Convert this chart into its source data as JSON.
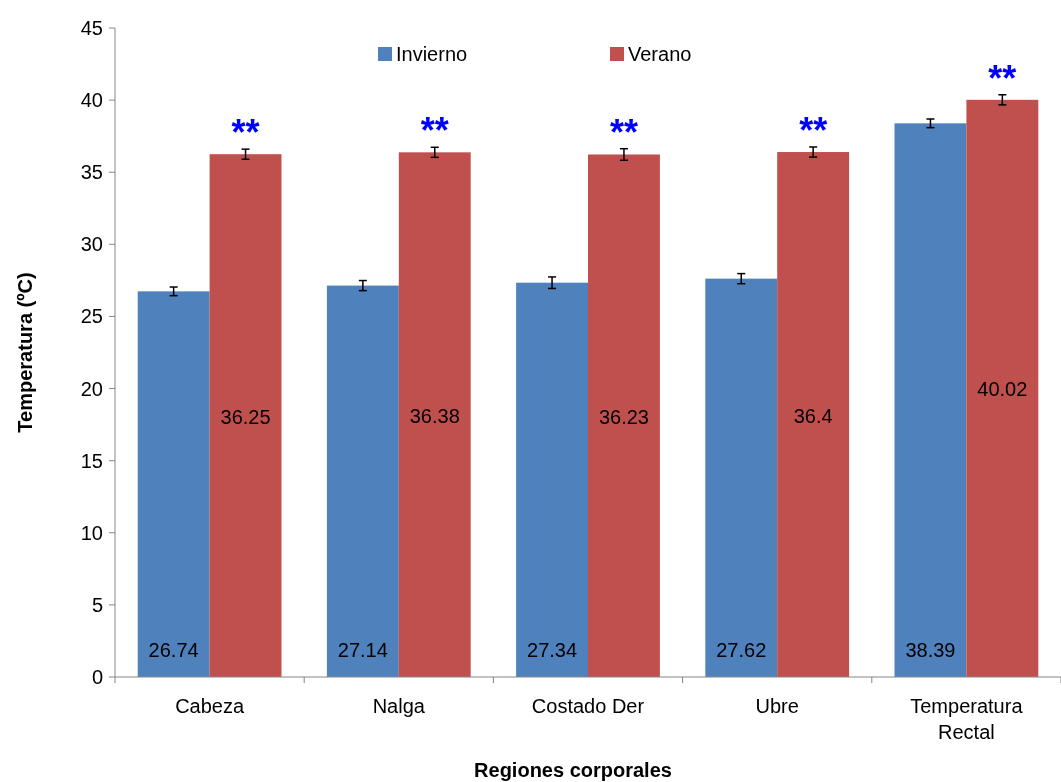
{
  "chart_data": {
    "type": "bar",
    "xlabel": "Regiones  corporales",
    "ylabel": "Temperatura (ºC)",
    "categories": [
      "Cabeza",
      "Nalga",
      "Costado Der",
      "Ubre",
      "Temperatura Rectal"
    ],
    "series": [
      {
        "name": "Invierno",
        "color": "#4f81bd",
        "values": [
          26.74,
          27.14,
          27.34,
          27.62,
          38.39
        ],
        "errors": [
          0.3,
          0.35,
          0.4,
          0.35,
          0.3
        ]
      },
      {
        "name": "Verano",
        "color": "#c0504d",
        "values": [
          36.25,
          36.38,
          36.23,
          36.4,
          40.02
        ],
        "errors": [
          0.35,
          0.35,
          0.4,
          0.35,
          0.35
        ]
      }
    ],
    "ylim": [
      0,
      45
    ],
    "yticks": [
      0,
      5,
      10,
      15,
      20,
      25,
      30,
      35,
      40,
      45
    ],
    "grid": false,
    "legend": "top",
    "data_labels": true,
    "annotations": [
      "**",
      "**",
      "**",
      "**",
      "**"
    ]
  }
}
